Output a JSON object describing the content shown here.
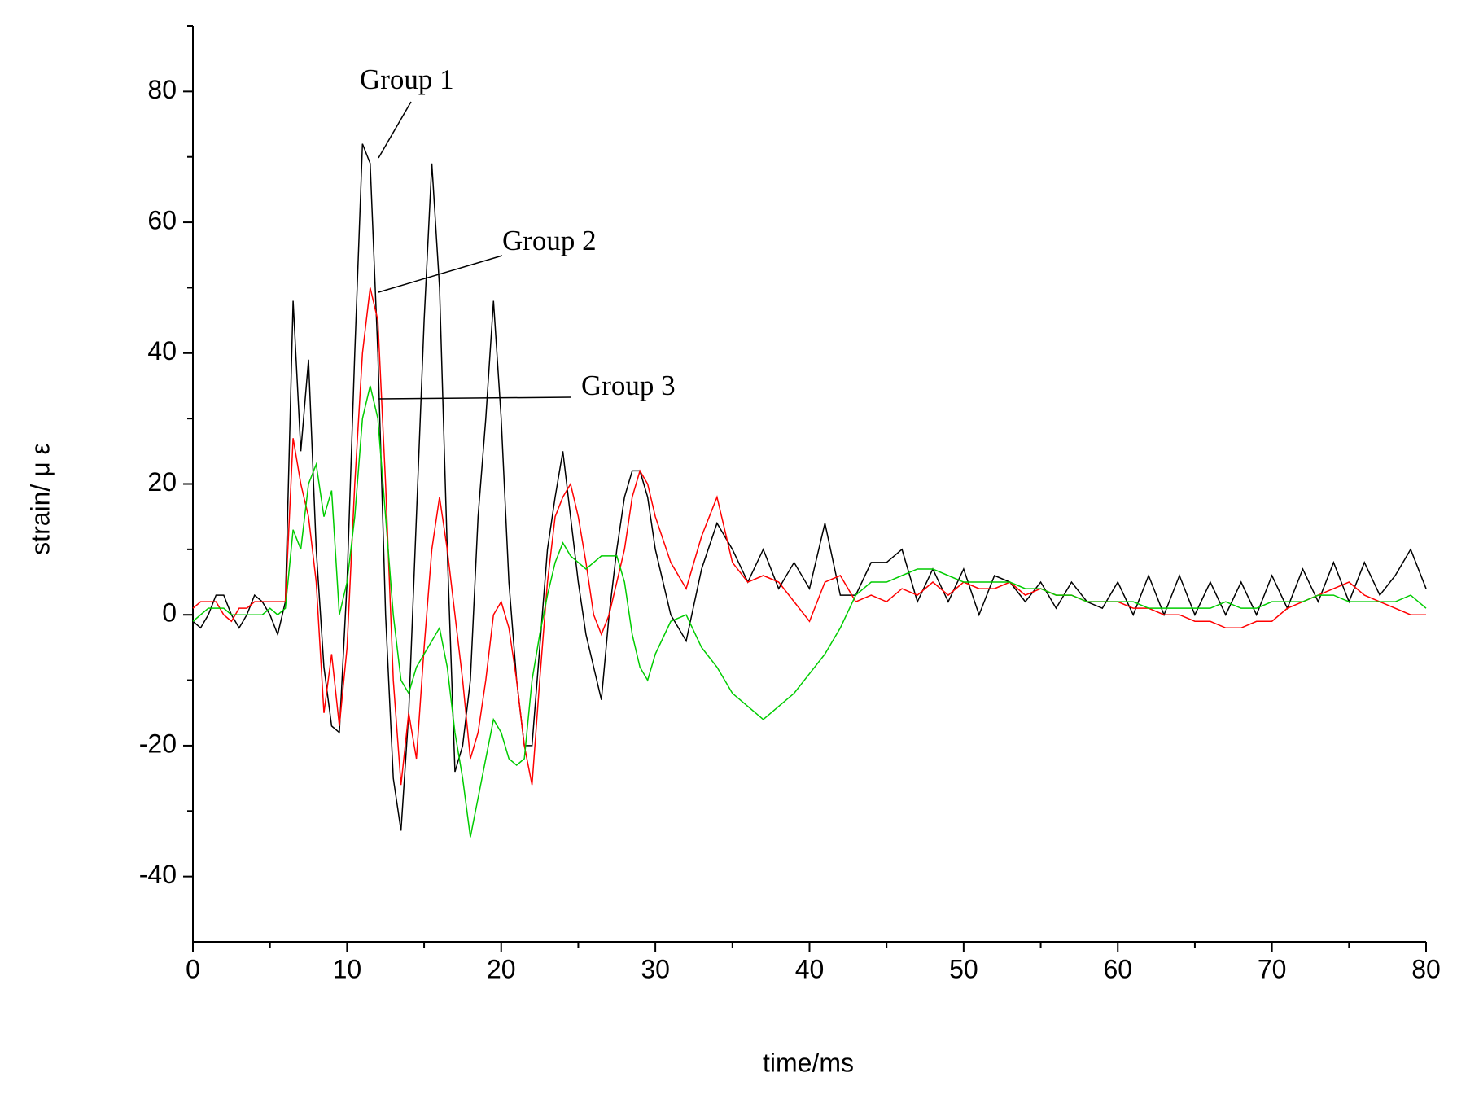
{
  "chart_data": {
    "type": "line",
    "xlabel": "time/ms",
    "ylabel": "strain/ μ ε",
    "x": [
      0,
      0.5,
      1,
      1.5,
      2,
      2.5,
      3,
      3.5,
      4,
      4.5,
      5,
      5.5,
      6,
      6.5,
      7,
      7.5,
      8,
      8.5,
      9,
      9.5,
      10,
      10.5,
      11,
      11.5,
      12,
      12.5,
      13,
      13.5,
      14,
      14.5,
      15,
      15.5,
      16,
      16.5,
      17,
      17.5,
      18,
      18.5,
      19,
      19.5,
      20,
      20.5,
      21,
      21.5,
      22,
      22.5,
      23,
      23.5,
      24,
      24.5,
      25,
      25.5,
      26,
      26.5,
      27,
      27.5,
      28,
      28.5,
      29,
      29.5,
      30,
      31,
      32,
      33,
      34,
      35,
      36,
      37,
      38,
      39,
      40,
      41,
      42,
      43,
      44,
      45,
      46,
      47,
      48,
      49,
      50,
      51,
      52,
      53,
      54,
      55,
      56,
      57,
      58,
      59,
      60,
      61,
      62,
      63,
      64,
      65,
      66,
      67,
      68,
      69,
      70,
      71,
      72,
      73,
      74,
      75,
      76,
      77,
      78,
      79,
      80
    ],
    "series": [
      {
        "name": "Group 1",
        "color": "#000000",
        "values": [
          -1,
          -2,
          0,
          3,
          3,
          0,
          -2,
          0,
          3,
          2,
          0,
          -3,
          2,
          48,
          25,
          39,
          10,
          -8,
          -17,
          -18,
          5,
          40,
          72,
          69,
          40,
          0,
          -25,
          -33,
          -15,
          15,
          45,
          69,
          50,
          10,
          -24,
          -20,
          -10,
          15,
          30,
          48,
          30,
          5,
          -10,
          -20,
          -20,
          -5,
          10,
          18,
          25,
          15,
          5,
          -3,
          -8,
          -13,
          0,
          10,
          18,
          22,
          22,
          18,
          10,
          0,
          -4,
          7,
          14,
          10,
          5,
          10,
          4,
          8,
          4,
          14,
          3,
          3,
          8,
          8,
          10,
          2,
          7,
          2,
          7,
          0,
          6,
          5,
          2,
          5,
          1,
          5,
          2,
          1,
          5,
          0,
          6,
          0,
          6,
          0,
          5,
          0,
          5,
          0,
          6,
          1,
          7,
          2,
          8,
          2,
          8,
          3,
          6,
          10,
          4
        ]
      },
      {
        "name": "Group 2",
        "color": "#ff0000",
        "values": [
          1,
          2,
          2,
          2,
          0,
          -1,
          1,
          1,
          2,
          2,
          2,
          2,
          2,
          27,
          20,
          15,
          5,
          -15,
          -6,
          -17,
          -5,
          20,
          40,
          50,
          45,
          20,
          -10,
          -26,
          -15,
          -22,
          -5,
          10,
          18,
          10,
          0,
          -10,
          -22,
          -18,
          -10,
          0,
          2,
          -2,
          -10,
          -20,
          -26,
          -10,
          5,
          15,
          18,
          20,
          15,
          8,
          0,
          -3,
          0,
          5,
          10,
          18,
          22,
          20,
          15,
          8,
          4,
          12,
          18,
          8,
          5,
          6,
          5,
          2,
          -1,
          5,
          6,
          2,
          3,
          2,
          4,
          3,
          5,
          3,
          5,
          4,
          4,
          5,
          3,
          4,
          3,
          3,
          2,
          2,
          2,
          1,
          1,
          0,
          0,
          -1,
          -1,
          -2,
          -2,
          -1,
          -1,
          1,
          2,
          3,
          4,
          5,
          3,
          2,
          1,
          0,
          0
        ]
      },
      {
        "name": "Group 3",
        "color": "#00cc00",
        "values": [
          -1,
          0,
          1,
          1,
          1,
          0,
          0,
          0,
          0,
          0,
          1,
          0,
          1,
          13,
          10,
          20,
          23,
          15,
          19,
          0,
          5,
          15,
          30,
          35,
          30,
          15,
          0,
          -10,
          -12,
          -8,
          -6,
          -4,
          -2,
          -8,
          -18,
          -25,
          -34,
          -28,
          -22,
          -16,
          -18,
          -22,
          -23,
          -22,
          -10,
          -3,
          3,
          8,
          11,
          9,
          8,
          7,
          8,
          9,
          9,
          9,
          5,
          -3,
          -8,
          -10,
          -6,
          -1,
          0,
          -5,
          -8,
          -12,
          -14,
          -16,
          -14,
          -12,
          -9,
          -6,
          -2,
          3,
          5,
          5,
          6,
          7,
          7,
          6,
          5,
          5,
          5,
          5,
          4,
          4,
          3,
          3,
          2,
          2,
          2,
          2,
          1,
          1,
          1,
          1,
          1,
          2,
          1,
          1,
          2,
          2,
          2,
          3,
          3,
          2,
          2,
          2,
          2,
          3,
          1
        ]
      }
    ],
    "xlim": [
      0,
      80
    ],
    "xticks": [
      0,
      10,
      20,
      30,
      40,
      50,
      60,
      70,
      80
    ],
    "xminorticks": [
      5,
      15,
      25,
      35,
      45,
      55,
      65,
      75
    ],
    "ylim": [
      -50,
      90
    ],
    "yticks": [
      -40,
      -20,
      0,
      20,
      40,
      60,
      80
    ],
    "yminorticks": [
      -30,
      -10,
      10,
      30,
      50,
      70,
      90
    ]
  }
}
